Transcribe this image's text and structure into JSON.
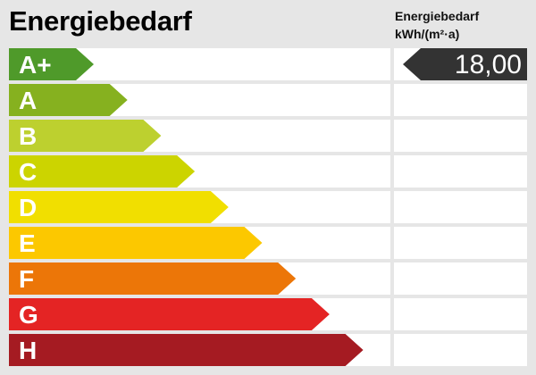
{
  "title": "Energiebedarf",
  "unit_label_line1": "Energiebedarf",
  "unit_label_line2": "kWh/(m²·a)",
  "classes": [
    {
      "label": "A+",
      "color": "#4f9a2a"
    },
    {
      "label": "A",
      "color": "#86b11f"
    },
    {
      "label": "B",
      "color": "#bdd02f"
    },
    {
      "label": "C",
      "color": "#ccd400"
    },
    {
      "label": "D",
      "color": "#f1df00"
    },
    {
      "label": "E",
      "color": "#fcc800"
    },
    {
      "label": "F",
      "color": "#ec7608"
    },
    {
      "label": "G",
      "color": "#e42424"
    },
    {
      "label": "H",
      "color": "#a51b22"
    }
  ],
  "value": {
    "text": "18,00",
    "class_index": 0,
    "color": "#333333"
  }
}
